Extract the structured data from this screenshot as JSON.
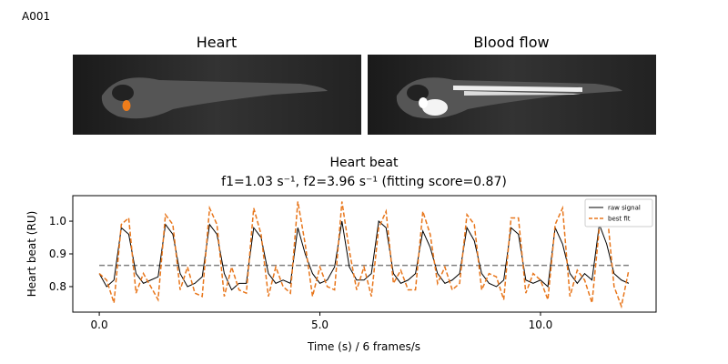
{
  "label": "A001",
  "panels": [
    {
      "title": "Heart"
    },
    {
      "title": "Blood flow"
    }
  ],
  "chart_data": {
    "type": "line",
    "title": "Heart beat",
    "subtitle": "f1=1.03 s⁻¹, f2=3.96 s⁻¹ (fitting score=0.87)",
    "x_label": "Time (s) / 6 frames/s",
    "y_label": "Heart beat (RU)",
    "x": [
      0,
      0.167,
      0.333,
      0.5,
      0.667,
      0.833,
      1,
      1.167,
      1.333,
      1.5,
      1.667,
      1.833,
      2,
      2.167,
      2.333,
      2.5,
      2.667,
      2.833,
      3,
      3.167,
      3.333,
      3.5,
      3.667,
      3.833,
      4,
      4.167,
      4.333,
      4.5,
      4.667,
      4.833,
      5,
      5.167,
      5.333,
      5.5,
      5.667,
      5.833,
      6,
      6.167,
      6.333,
      6.5,
      6.667,
      6.833,
      7,
      7.167,
      7.333,
      7.5,
      7.667,
      7.833,
      8,
      8.167,
      8.333,
      8.5,
      8.667,
      8.833,
      9,
      9.167,
      9.333,
      9.5,
      9.667,
      9.833,
      10,
      10.167,
      10.333,
      10.5,
      10.667,
      10.833,
      11,
      11.167,
      11.333,
      11.5,
      11.667,
      11.833,
      12
    ],
    "series": [
      {
        "name": "raw signal",
        "color": "#000000",
        "dash": false,
        "values": [
          0.84,
          0.8,
          0.82,
          0.98,
          0.96,
          0.84,
          0.81,
          0.82,
          0.83,
          0.99,
          0.96,
          0.84,
          0.8,
          0.81,
          0.83,
          0.99,
          0.96,
          0.84,
          0.79,
          0.81,
          0.81,
          0.98,
          0.95,
          0.84,
          0.81,
          0.82,
          0.81,
          0.98,
          0.9,
          0.84,
          0.81,
          0.82,
          0.86,
          1.0,
          0.86,
          0.82,
          0.82,
          0.84,
          1.0,
          0.98,
          0.84,
          0.81,
          0.82,
          0.84,
          0.97,
          0.92,
          0.84,
          0.81,
          0.82,
          0.84,
          0.98,
          0.94,
          0.84,
          0.81,
          0.8,
          0.82,
          0.98,
          0.96,
          0.82,
          0.81,
          0.82,
          0.8,
          0.98,
          0.93,
          0.84,
          0.81,
          0.84,
          0.82,
          0.99,
          0.93,
          0.84,
          0.82,
          0.81
        ]
      },
      {
        "name": "best fit",
        "color": "#e8761b",
        "dash": true,
        "values": [
          0.84,
          0.82,
          0.75,
          0.99,
          1.01,
          0.78,
          0.84,
          0.8,
          0.76,
          1.02,
          0.99,
          0.79,
          0.86,
          0.78,
          0.77,
          1.04,
          0.99,
          0.77,
          0.86,
          0.79,
          0.78,
          1.04,
          0.96,
          0.77,
          0.86,
          0.8,
          0.78,
          1.06,
          0.93,
          0.77,
          0.86,
          0.8,
          0.79,
          1.06,
          0.91,
          0.79,
          0.86,
          0.77,
          0.98,
          1.03,
          0.81,
          0.85,
          0.79,
          0.79,
          1.03,
          0.96,
          0.81,
          0.86,
          0.79,
          0.81,
          1.02,
          0.99,
          0.79,
          0.84,
          0.83,
          0.76,
          1.01,
          1.01,
          0.78,
          0.84,
          0.82,
          0.76,
          0.99,
          1.04,
          0.77,
          0.85,
          0.82,
          0.75,
          0.98,
          1.04,
          0.8,
          0.74,
          0.85
        ]
      }
    ],
    "threshold": {
      "value": 0.865,
      "x": [
        0,
        12
      ],
      "color": "#808080"
    },
    "xlim": [
      -0.6,
      12.62
    ],
    "ylim": [
      0.722,
      1.078
    ],
    "xticks": [
      {
        "value": 0,
        "label": "0.0"
      },
      {
        "value": 5,
        "label": "5.0"
      },
      {
        "value": 10,
        "label": "10.0"
      }
    ],
    "yticks": [
      0.8,
      0.9,
      {
        "value": 1,
        "label": "1.0"
      }
    ],
    "grid": false,
    "legend": "upper right"
  }
}
